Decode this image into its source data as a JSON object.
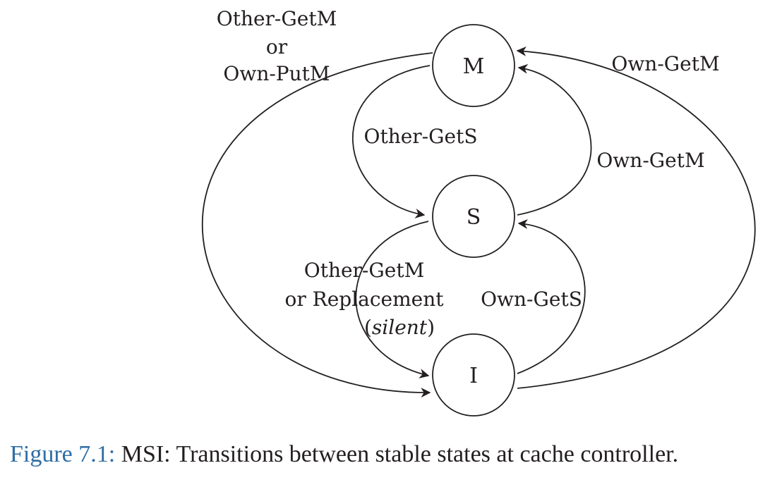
{
  "diagram": {
    "states": [
      {
        "id": "M",
        "label": "M"
      },
      {
        "id": "S",
        "label": "S"
      },
      {
        "id": "I",
        "label": "I"
      }
    ],
    "transitions": [
      {
        "from": "M",
        "to": "I",
        "label_lines": [
          "Other-GetM",
          "or",
          "Own-PutM"
        ]
      },
      {
        "from": "I",
        "to": "M",
        "label_lines": [
          "Own-GetM"
        ]
      },
      {
        "from": "M",
        "to": "S",
        "label_lines": [
          "Other-GetS"
        ]
      },
      {
        "from": "S",
        "to": "M",
        "label_lines": [
          "Own-GetM"
        ]
      },
      {
        "from": "S",
        "to": "I",
        "label_lines": [
          "Other-GetM",
          "or Replacement"
        ],
        "note_italic": "silent"
      },
      {
        "from": "I",
        "to": "S",
        "label_lines": [
          "Own-GetS"
        ]
      }
    ]
  },
  "caption": {
    "number": "Figure 7.1:",
    "text": "MSI: Transitions between stable states at cache controller."
  },
  "colors": {
    "ink": "#231f20",
    "caption_number": "#2e6da4"
  }
}
